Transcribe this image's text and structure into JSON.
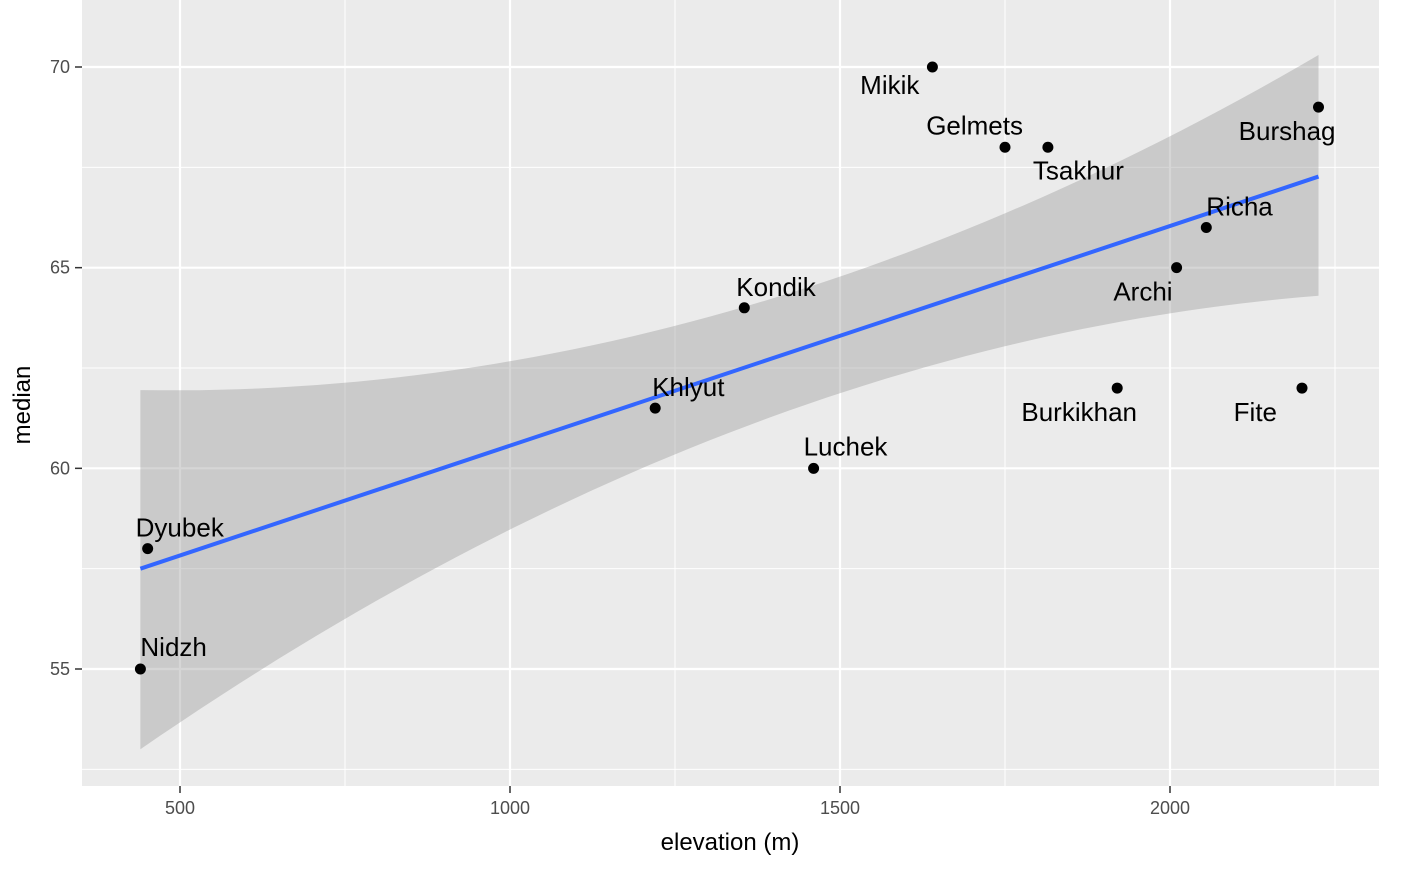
{
  "chart_data": {
    "type": "scatter",
    "xlabel": "elevation (m)",
    "ylabel": "median",
    "xlim": [
      350,
      2310
    ],
    "ylim": [
      52.5,
      71.5
    ],
    "x_ticks": [
      500,
      1000,
      1500,
      2000
    ],
    "x_tick_labels": [
      "500",
      "1000",
      "1500",
      "2000"
    ],
    "y_ticks": [
      55,
      60,
      65,
      70
    ],
    "y_tick_labels": [
      "55",
      "60",
      "65",
      "70"
    ],
    "x_minor_ticks": [
      750,
      1250,
      1750,
      2250
    ],
    "y_minor_ticks": [
      52.5,
      57.5,
      62.5,
      67.5
    ],
    "grid": true,
    "background_color": "#ebebeb",
    "grid_color": "#ffffff",
    "point_color": "#000000",
    "points": [
      {
        "label": "Nidzh",
        "x": 440,
        "y": 55
      },
      {
        "label": "Dyubek",
        "x": 451,
        "y": 58
      },
      {
        "label": "Khlyut",
        "x": 1220,
        "y": 61.5
      },
      {
        "label": "Kondik",
        "x": 1355,
        "y": 64
      },
      {
        "label": "Luchek",
        "x": 1460,
        "y": 60
      },
      {
        "label": "Mikik",
        "x": 1640,
        "y": 70
      },
      {
        "label": "Gelmets",
        "x": 1750,
        "y": 68
      },
      {
        "label": "Tsakhur",
        "x": 1815,
        "y": 68
      },
      {
        "label": "Burkikhan",
        "x": 1920,
        "y": 62
      },
      {
        "label": "Archi",
        "x": 2010,
        "y": 65
      },
      {
        "label": "Richa",
        "x": 2055,
        "y": 66
      },
      {
        "label": "Fite",
        "x": 2200,
        "y": 62
      },
      {
        "label": "Burshag",
        "x": 2225,
        "y": 69
      }
    ],
    "fit": {
      "method": "lm",
      "color": "#3366ff",
      "band_color": "#999999",
      "band_opacity": 0.4,
      "x": [
        440,
        2225
      ],
      "y": [
        57.5,
        67.27
      ],
      "band_x": [
        440,
        1350,
        2225
      ],
      "band_upper": [
        61.95,
        64.0,
        70.3
      ],
      "band_lower": [
        53.0,
        61.0,
        64.3
      ]
    }
  }
}
